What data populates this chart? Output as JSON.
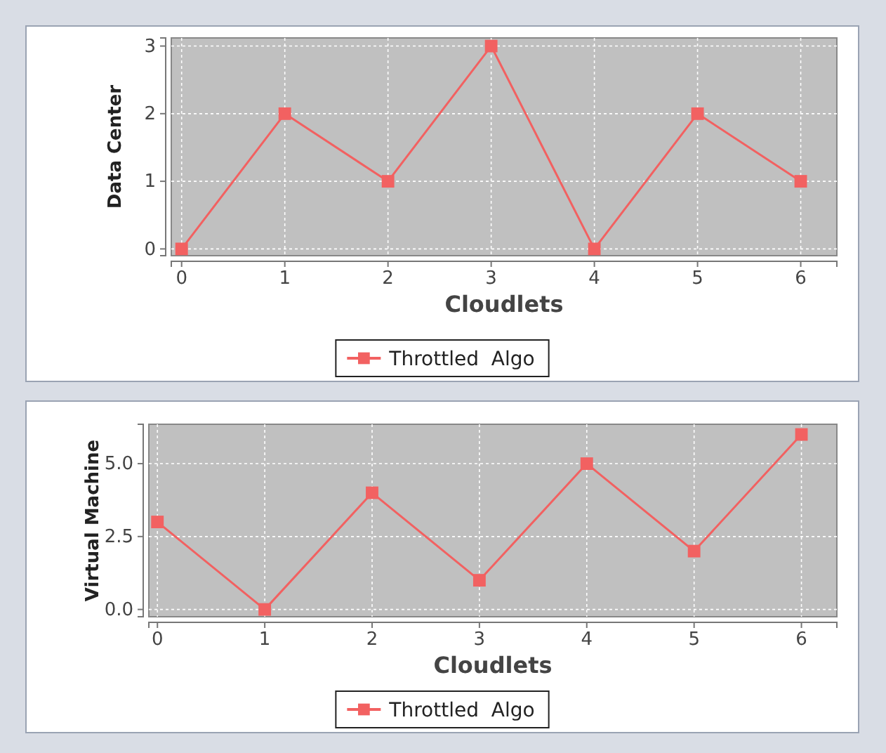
{
  "chart_data": [
    {
      "type": "line",
      "xlabel": "Cloudlets",
      "ylabel": "Data Center",
      "x": [
        0,
        1,
        2,
        3,
        4,
        5,
        6
      ],
      "xlim": [
        -0.1,
        6.35
      ],
      "xticks": [
        0,
        1,
        2,
        3,
        4,
        5,
        6
      ],
      "ylim": [
        -0.1,
        3.12
      ],
      "yticks": [
        0,
        1,
        2,
        3
      ],
      "grid": true,
      "legend": "bottom",
      "marker": "square",
      "line_style": "solid",
      "series": [
        {
          "name": "Throttled  Algo",
          "color": "#f26161",
          "values": [
            0,
            2,
            1,
            3,
            0,
            2,
            1
          ]
        }
      ]
    },
    {
      "type": "line",
      "xlabel": "Cloudlets",
      "ylabel": "Virtual Machine",
      "x": [
        0,
        1,
        2,
        3,
        4,
        5,
        6
      ],
      "xlim": [
        -0.08,
        6.33
      ],
      "xticks": [
        0,
        1,
        2,
        3,
        4,
        5,
        6
      ],
      "ylim": [
        -0.25,
        6.35
      ],
      "yticks": [
        {
          "value": 0,
          "label": "0.0"
        },
        {
          "value": 2.5,
          "label": "2.5"
        },
        {
          "value": 5,
          "label": "5.0"
        }
      ],
      "grid": true,
      "legend": "bottom",
      "marker": "square",
      "line_style": "solid",
      "series": [
        {
          "name": "Throttled  Algo",
          "color": "#f26161",
          "values": [
            3,
            0,
            4,
            1,
            5,
            2,
            6
          ]
        }
      ]
    }
  ]
}
